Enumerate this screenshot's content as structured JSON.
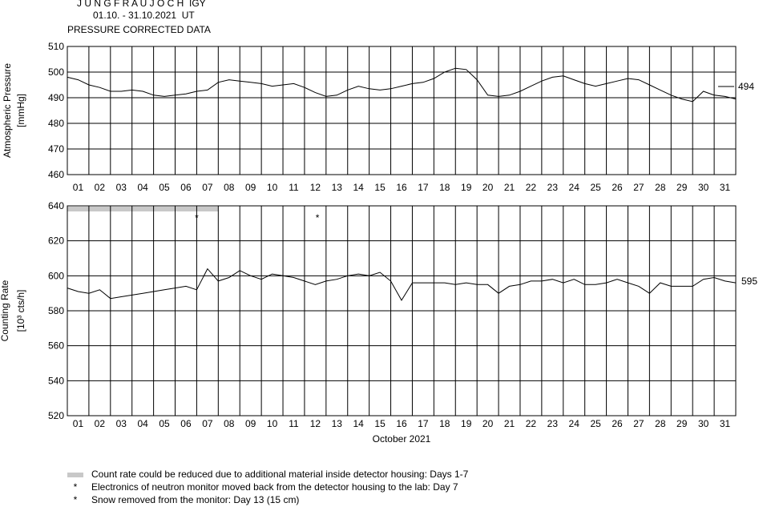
{
  "header": {
    "station": "J U N G F R A U J O C H  IGY",
    "period": "01.10. - 31.10.2021  UT",
    "subtitle": "PRESSURE CORRECTED DATA"
  },
  "legend": {
    "items": [
      {
        "symbol": "bar",
        "text": "Count rate could be reduced due to additional material inside detector housing: Days 1-7"
      },
      {
        "symbol": "*",
        "text": "Electronics of neutron monitor moved back from the detector housing to the lab: Day 7"
      },
      {
        "symbol": "*",
        "text": "Snow removed from the monitor: Day 13 (15 cm)"
      }
    ]
  },
  "chart_data": [
    {
      "type": "line",
      "name": "pressure",
      "ylabel": "Atmospheric Pressure",
      "yunit": "[mmHg]",
      "ylim": [
        460,
        510
      ],
      "yticks": [
        460,
        470,
        480,
        490,
        500,
        510
      ],
      "xlim": [
        1,
        32
      ],
      "day_labels": [
        "01",
        "02",
        "03",
        "04",
        "05",
        "06",
        "07",
        "08",
        "09",
        "10",
        "11",
        "12",
        "13",
        "14",
        "15",
        "16",
        "17",
        "18",
        "19",
        "20",
        "21",
        "22",
        "23",
        "24",
        "25",
        "26",
        "27",
        "28",
        "29",
        "30",
        "31"
      ],
      "grid": true,
      "reference_value": "494",
      "x": [
        1.0,
        1.5,
        2.0,
        2.5,
        3.0,
        3.5,
        4.0,
        4.5,
        5.0,
        5.5,
        6.0,
        6.5,
        7.0,
        7.5,
        8.0,
        8.5,
        9.0,
        9.5,
        10.0,
        10.5,
        11.0,
        11.5,
        12.0,
        12.5,
        13.0,
        13.5,
        14.0,
        14.5,
        15.0,
        15.5,
        16.0,
        16.5,
        17.0,
        17.5,
        18.0,
        18.5,
        19.0,
        19.5,
        20.0,
        20.5,
        21.0,
        21.5,
        22.0,
        22.5,
        23.0,
        23.5,
        24.0,
        24.5,
        25.0,
        25.5,
        26.0,
        26.5,
        27.0,
        27.5,
        28.0,
        28.5,
        29.0,
        29.5,
        30.0,
        30.5,
        31.0,
        31.5,
        32.0
      ],
      "y": [
        498,
        497,
        495,
        494,
        492.5,
        492.5,
        493,
        492.5,
        491,
        490.5,
        491,
        491.5,
        492.5,
        493,
        496,
        497,
        496.5,
        496,
        495.5,
        494.5,
        495,
        495.5,
        494,
        492,
        490.5,
        491,
        493,
        494.5,
        493.5,
        493,
        493.5,
        494.5,
        495.5,
        496,
        497.5,
        500,
        501.5,
        501,
        497,
        491,
        490.5,
        491,
        492.5,
        494.5,
        496.5,
        498,
        498.5,
        497,
        495.5,
        494.5,
        495.5,
        496.5,
        497.5,
        497,
        495,
        493,
        491,
        489.5,
        488.5,
        492.5,
        491,
        490.5,
        489.5
      ]
    },
    {
      "type": "line",
      "name": "counting-rate",
      "ylabel": "Counting Rate",
      "yunit": "[10³ cts/h]",
      "ylim": [
        520,
        640
      ],
      "yticks": [
        520,
        540,
        560,
        580,
        600,
        620,
        640
      ],
      "xlim": [
        1,
        32
      ],
      "xlabel": "October 2021",
      "grid": true,
      "reference_value": "595",
      "reduced_period_days": [
        1,
        7
      ],
      "star_markers": [
        {
          "day": 7.0,
          "symbol": "*"
        },
        {
          "day": 12.6,
          "symbol": "*"
        }
      ],
      "x": [
        1.0,
        1.5,
        2.0,
        2.5,
        3.0,
        3.5,
        4.0,
        4.5,
        5.0,
        5.5,
        6.0,
        6.5,
        7.0,
        7.5,
        8.0,
        8.5,
        9.0,
        9.5,
        10.0,
        10.5,
        11.0,
        11.5,
        12.0,
        12.5,
        13.0,
        13.5,
        14.0,
        14.5,
        15.0,
        15.5,
        16.0,
        16.5,
        17.0,
        17.5,
        18.0,
        18.5,
        19.0,
        19.5,
        20.0,
        20.5,
        21.0,
        21.5,
        22.0,
        22.5,
        23.0,
        23.5,
        24.0,
        24.5,
        25.0,
        25.5,
        26.0,
        26.5,
        27.0,
        27.5,
        28.0,
        28.5,
        29.0,
        29.5,
        30.0,
        30.5,
        31.0,
        31.5,
        32.0
      ],
      "y": [
        593,
        591,
        590,
        592,
        587,
        588,
        589,
        590,
        591,
        592,
        593,
        594,
        592,
        604,
        597,
        599,
        603,
        600,
        598,
        601,
        600,
        599,
        597,
        595,
        597,
        598,
        600,
        601,
        600,
        602,
        597,
        586,
        596,
        596,
        596,
        596,
        595,
        596,
        595,
        595,
        590,
        594,
        595,
        597,
        597,
        598,
        596,
        598,
        595,
        595,
        596,
        598,
        596,
        594,
        590,
        596,
        594,
        594,
        594,
        598,
        599,
        597,
        596
      ]
    }
  ]
}
